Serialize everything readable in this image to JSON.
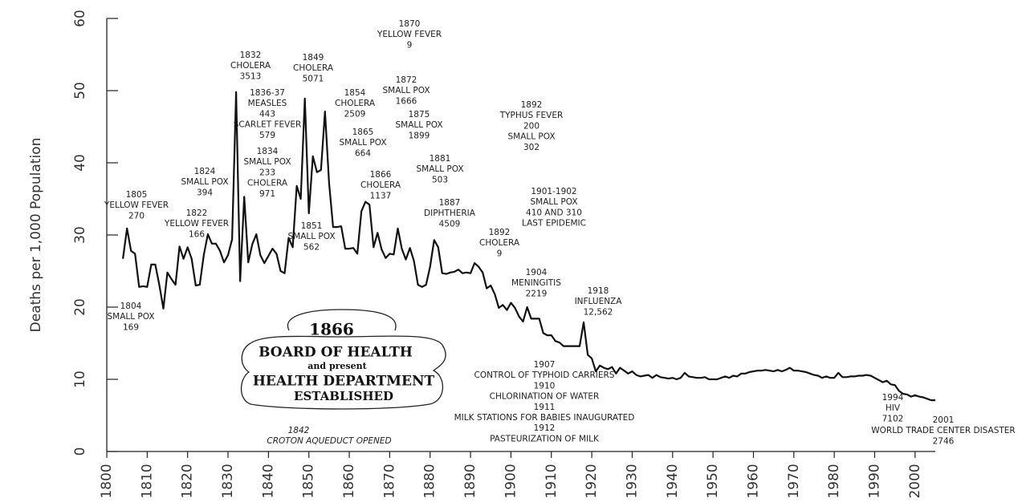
{
  "chart_data": {
    "type": "line",
    "y_label": "Deaths per 1,000 Population",
    "x": [
      1804,
      1805,
      1806,
      1807,
      1808,
      1809,
      1810,
      1811,
      1812,
      1813,
      1814,
      1815,
      1816,
      1817,
      1818,
      1819,
      1820,
      1821,
      1822,
      1823,
      1824,
      1825,
      1826,
      1827,
      1828,
      1829,
      1830,
      1831,
      1832,
      1833,
      1834,
      1835,
      1836,
      1837,
      1838,
      1839,
      1840,
      1841,
      1842,
      1843,
      1844,
      1845,
      1846,
      1847,
      1848,
      1849,
      1850,
      1851,
      1852,
      1853,
      1854,
      1855,
      1856,
      1857,
      1858,
      1859,
      1860,
      1861,
      1862,
      1863,
      1864,
      1865,
      1866,
      1867,
      1868,
      1869,
      1870,
      1871,
      1872,
      1873,
      1874,
      1875,
      1876,
      1877,
      1878,
      1879,
      1880,
      1881,
      1882,
      1883,
      1884,
      1885,
      1886,
      1887,
      1888,
      1889,
      1890,
      1891,
      1892,
      1893,
      1894,
      1895,
      1896,
      1897,
      1898,
      1899,
      1900,
      1901,
      1902,
      1903,
      1904,
      1905,
      1906,
      1907,
      1908,
      1909,
      1910,
      1911,
      1912,
      1913,
      1914,
      1915,
      1916,
      1917,
      1918,
      1919,
      1920,
      1921,
      1922,
      1923,
      1924,
      1925,
      1926,
      1927,
      1928,
      1929,
      1930,
      1931,
      1932,
      1933,
      1934,
      1935,
      1936,
      1937,
      1938,
      1939,
      1940,
      1941,
      1942,
      1943,
      1944,
      1945,
      1946,
      1947,
      1948,
      1949,
      1950,
      1951,
      1952,
      1953,
      1954,
      1955,
      1956,
      1957,
      1958,
      1959,
      1960,
      1961,
      1962,
      1963,
      1964,
      1965,
      1966,
      1967,
      1968,
      1969,
      1970,
      1971,
      1972,
      1973,
      1974,
      1975,
      1976,
      1977,
      1978,
      1979,
      1980,
      1981,
      1982,
      1983,
      1984,
      1985,
      1986,
      1987,
      1988,
      1989,
      1990,
      1991,
      1992,
      1993,
      1994,
      1995,
      1996,
      1997,
      1998,
      1999,
      2000,
      2001,
      2002,
      2003,
      2004,
      2005
    ],
    "values": [
      26.7,
      30.9,
      27.8,
      27.4,
      22.8,
      22.9,
      22.8,
      25.9,
      25.9,
      23.1,
      19.8,
      24.8,
      23.9,
      23.1,
      28.4,
      26.7,
      28.3,
      26.7,
      23,
      23.1,
      27.2,
      30.1,
      28.8,
      28.8,
      27.8,
      26.2,
      27.2,
      29.4,
      49.8,
      23.6,
      35.3,
      26.2,
      28.7,
      30.1,
      27.2,
      26.1,
      27.1,
      28.1,
      27.4,
      25,
      24.7,
      29.6,
      28.3,
      36.8,
      35,
      48.9,
      33,
      40.9,
      38.7,
      39,
      47.1,
      37.2,
      31.1,
      31.1,
      31.2,
      28.1,
      28.1,
      28.2,
      27.4,
      33.3,
      34.6,
      34.2,
      28.3,
      30.3,
      28,
      26.8,
      27.4,
      27.3,
      30.9,
      28.1,
      26.6,
      28.2,
      26.4,
      23.1,
      22.8,
      23.1,
      25.6,
      29.3,
      28.3,
      24.7,
      24.6,
      24.8,
      24.9,
      25.2,
      24.7,
      24.8,
      24.7,
      26.1,
      25.6,
      24.8,
      22.6,
      23,
      21.8,
      19.9,
      20.3,
      19.6,
      20.6,
      19.9,
      18.7,
      18,
      20,
      18.4,
      18.4,
      18.4,
      16.4,
      16.1,
      16.1,
      15.3,
      15.1,
      14.6,
      14.6,
      14.6,
      14.6,
      14.6,
      17.9,
      13.4,
      12.9,
      11.1,
      11.9,
      11.6,
      11.4,
      11.7,
      10.8,
      11.6,
      11.2,
      10.8,
      11.1,
      10.6,
      10.4,
      10.5,
      10.6,
      10.2,
      10.6,
      10.3,
      10.2,
      10.1,
      10.2,
      10.0,
      10.2,
      10.9,
      10.4,
      10.3,
      10.2,
      10.2,
      10.3,
      10.0,
      10.0,
      10.0,
      10.2,
      10.4,
      10.2,
      10.5,
      10.4,
      10.8,
      10.8,
      11.0,
      11.1,
      11.2,
      11.2,
      11.3,
      11.2,
      11.1,
      11.3,
      11.1,
      11.3,
      11.6,
      11.2,
      11.2,
      11.1,
      11.0,
      10.8,
      10.6,
      10.5,
      10.2,
      10.4,
      10.2,
      10.2,
      10.9,
      10.3,
      10.3,
      10.4,
      10.4,
      10.5,
      10.5,
      10.6,
      10.5,
      10.2,
      9.9,
      9.6,
      9.8,
      9.3,
      9.2,
      8.4,
      8.0,
      7.9,
      7.6,
      7.8,
      7.6,
      7.5,
      7.3,
      7.1,
      7.1
    ],
    "color": "#111111",
    "xlim": [
      1800,
      2005
    ],
    "xticks": [
      1800,
      1810,
      1820,
      1830,
      1840,
      1850,
      1860,
      1870,
      1880,
      1890,
      1900,
      1910,
      1920,
      1930,
      1940,
      1950,
      1960,
      1970,
      1980,
      1990,
      2000
    ],
    "ylim": [
      0,
      60
    ],
    "yticks": [
      0,
      10,
      20,
      30,
      40,
      50,
      60
    ],
    "annotations": [
      [
        "1805",
        "YELLOW FEVER",
        "270"
      ],
      [
        "1804",
        "SMALL POX",
        "169"
      ],
      [
        "1822",
        "YELLOW FEVER",
        "166"
      ],
      [
        "1824",
        "SMALL POX",
        "394"
      ],
      [
        "1832",
        "CHOLERA",
        "3513"
      ],
      [
        "1836-37",
        "MEASLES",
        "443",
        "SCARLET FEVER",
        "579"
      ],
      [
        "1834",
        "SMALL POX",
        "233",
        "CHOLERA",
        "971"
      ],
      [
        "1849",
        "CHOLERA",
        "5071"
      ],
      [
        "1851",
        "SMALL POX",
        "562"
      ],
      [
        "1854",
        "CHOLERA",
        "2509"
      ],
      [
        "1865",
        "SMALL POX",
        "664"
      ],
      [
        "1866",
        "CHOLERA",
        "1137"
      ],
      [
        "1870",
        "YELLOW FEVER",
        "9"
      ],
      [
        "1872",
        "SMALL POX",
        "1666"
      ],
      [
        "1875",
        "SMALL POX",
        "1899"
      ],
      [
        "1881",
        "SMALL POX",
        "503"
      ],
      [
        "1887",
        "DIPHTHERIA",
        "4509"
      ],
      [
        "1892",
        "TYPHUS FEVER",
        "200",
        "SMALL POX",
        "302"
      ],
      [
        "1901-1902",
        "SMALL POX",
        "410 AND 310",
        "LAST EPIDEMIC"
      ],
      [
        "1892",
        "CHOLERA",
        "9"
      ],
      [
        "1904",
        "MENINGITIS",
        "2219"
      ],
      [
        "1918",
        "INFLUENZA",
        "12,562"
      ],
      [
        "1907",
        "CONTROL OF TYPHOID CARRIERS",
        "1910",
        "CHLORINATION OF WATER",
        "1911",
        "MILK STATIONS FOR BABIES INAUGURATED",
        "1912",
        "PASTEURIZATION OF MILK"
      ],
      [
        "1994",
        "HIV",
        "7102"
      ],
      [
        "2001",
        "WORLD TRADE CENTER DISASTER",
        "2746"
      ]
    ],
    "board": {
      "year": "1866",
      "line1": "BOARD OF HEALTH",
      "line2": "and present",
      "line3": "HEALTH DEPARTMENT",
      "line4": "ESTABLISHED"
    },
    "croton": {
      "year": "1842",
      "text": "CROTON AQUEDUCT OPENED"
    }
  }
}
